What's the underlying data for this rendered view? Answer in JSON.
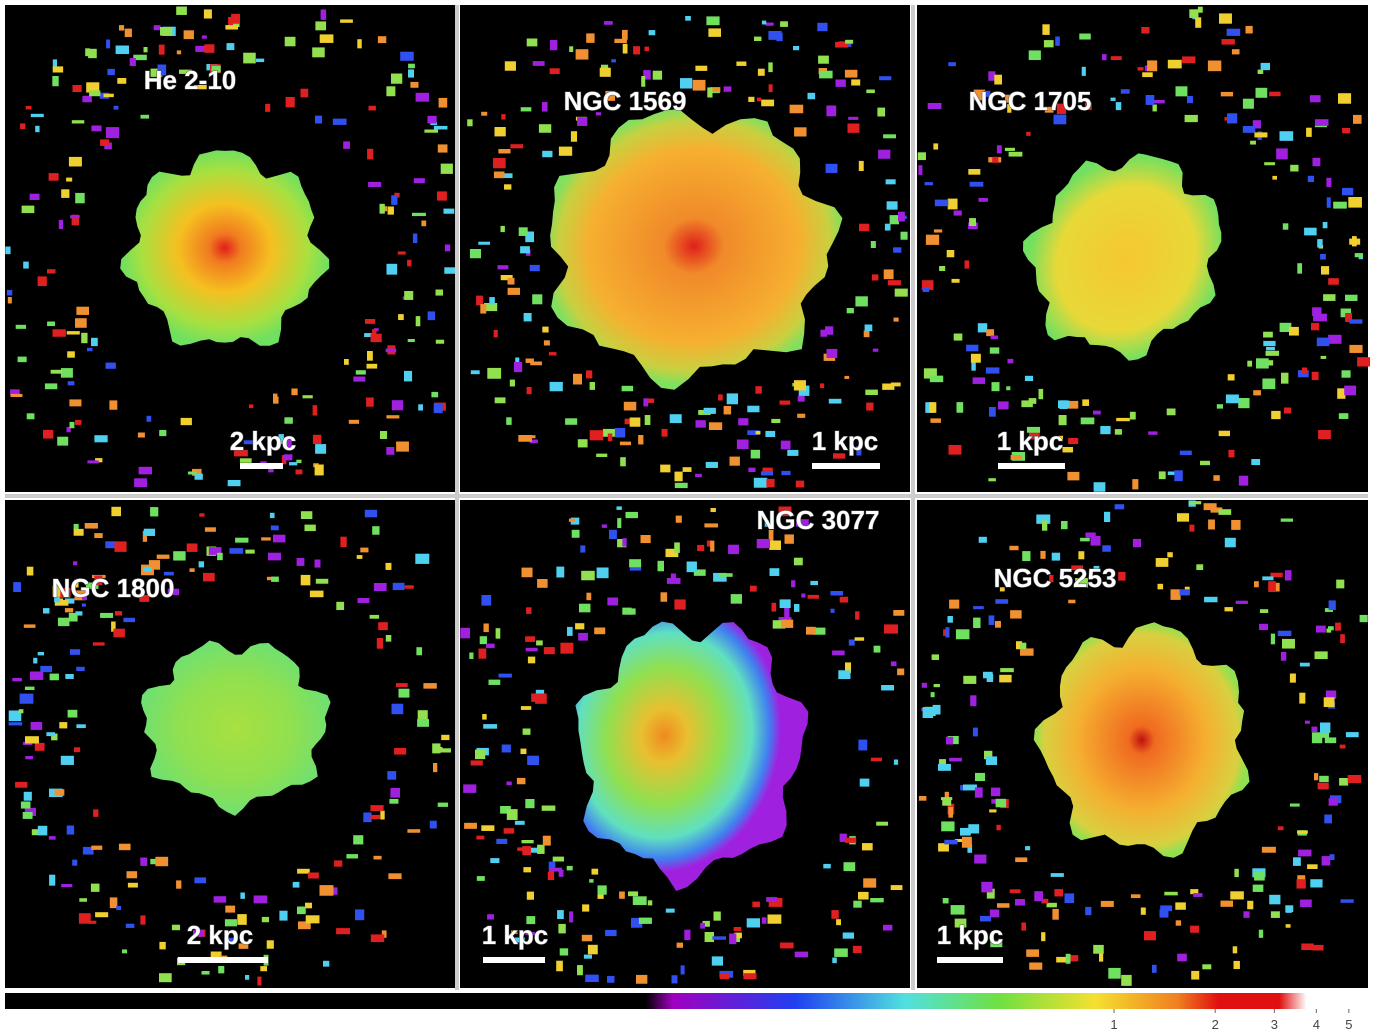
{
  "panels": [
    {
      "label": "He 2-10",
      "scale_bar": "2 kpc"
    },
    {
      "label": "NGC 1569",
      "scale_bar": "1 kpc"
    },
    {
      "label": "NGC 1705",
      "scale_bar": "1 kpc"
    },
    {
      "label": "NGC 1800",
      "scale_bar": "2 kpc"
    },
    {
      "label": "NGC 3077",
      "scale_bar": "1 kpc"
    },
    {
      "label": "NGC 5253",
      "scale_bar": "1 kpc"
    }
  ],
  "colorbar": {
    "scale": "log",
    "lim": [
      0.0005,
      5.7
    ],
    "ticks": [
      1,
      2,
      3,
      4,
      5
    ]
  }
}
